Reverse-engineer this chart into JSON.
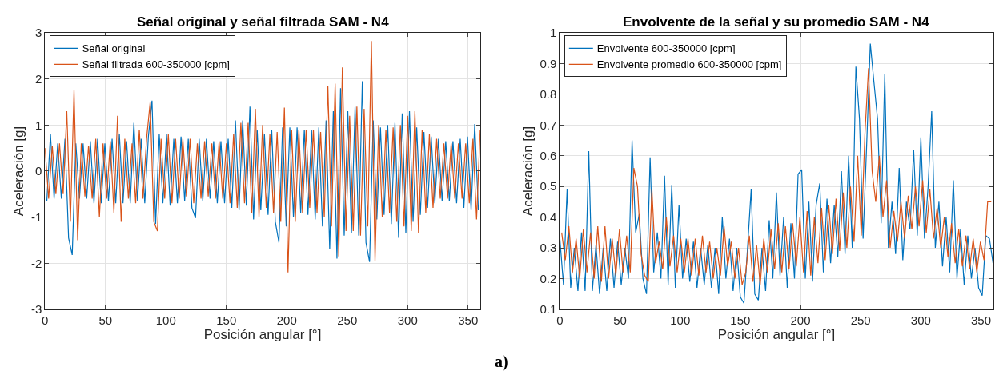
{
  "chart_data": [
    {
      "type": "line",
      "title": "Señal original y señal filtrada SAM - N4",
      "xlabel": "Posición angular [°]",
      "ylabel": "Aceleración [g]",
      "xlim": [
        0,
        360
      ],
      "ylim": [
        -3,
        3
      ],
      "xticks": [
        0,
        50,
        100,
        150,
        200,
        250,
        300,
        350
      ],
      "yticks": [
        -3,
        -2,
        -1,
        0,
        1,
        2,
        3
      ],
      "grid": true,
      "legend": "top left",
      "annotations": [
        "a)"
      ],
      "series": [
        {
          "name": "Señal original",
          "color": "#0072bd",
          "x": [
            1.5,
            4.5,
            7.5,
            10.5,
            13.5,
            16.5,
            19.5,
            22.5,
            25.5,
            28.5,
            31.5,
            34.5,
            37.5,
            40.5,
            43.5,
            46.5,
            49.5,
            52.5,
            55.5,
            58.5,
            61.5,
            64.5,
            67.5,
            70.5,
            73.5,
            76.5,
            79.5,
            82.5,
            85.5,
            88.5,
            91.5,
            94.5,
            97.5,
            100.5,
            103.5,
            106.5,
            109.5,
            112.5,
            115.5,
            118.5,
            121.5,
            124.5,
            127.5,
            130.5,
            133.5,
            136.5,
            139.5,
            142.5,
            145.5,
            148.5,
            151.5,
            154.5,
            157.5,
            160.5,
            163.5,
            166.5,
            169.5,
            172.5,
            175.5,
            178.5,
            181.5,
            184.5,
            187.5,
            190.5,
            193.5,
            196.5,
            199.5,
            202.5,
            205.5,
            208.5,
            211.5,
            214.5,
            217.5,
            220.5,
            223.5,
            226.5,
            229.5,
            232.5,
            235.5,
            238.5,
            241.5,
            244.5,
            247.5,
            250.5,
            253.5,
            256.5,
            259.5,
            262.5,
            265.5,
            268.5,
            271.5,
            274.5,
            277.5,
            280.5,
            283.5,
            286.5,
            289.5,
            292.5,
            295.5,
            298.5,
            301.5,
            304.5,
            307.5,
            310.5,
            313.5,
            316.5,
            319.5,
            322.5,
            325.5,
            328.5,
            331.5,
            334.5,
            337.5,
            340.5,
            343.5,
            346.5,
            349.5,
            352.5,
            355.5,
            358.5
          ],
          "values": [
            -0.65,
            0.8,
            -0.6,
            0.6,
            -0.6,
            0.7,
            -1.45,
            -1.82,
            0.6,
            -0.6,
            0.6,
            -0.6,
            0.65,
            -0.7,
            0.7,
            -0.7,
            0.6,
            -0.65,
            0.7,
            -0.7,
            0.8,
            -0.7,
            0.65,
            -0.7,
            1.05,
            -0.65,
            0.7,
            -0.7,
            0.75,
            1.53,
            -1.15,
            0.8,
            -0.7,
            0.8,
            -0.75,
            0.7,
            -0.7,
            0.75,
            -0.65,
            0.7,
            -0.8,
            -1.02,
            0.7,
            -0.65,
            0.7,
            -0.6,
            0.65,
            -0.7,
            0.65,
            -0.7,
            0.7,
            -0.8,
            1.1,
            -0.85,
            1.1,
            -0.75,
            1.4,
            -1.05,
            0.9,
            -0.85,
            0.8,
            -0.95,
            0.9,
            -1.1,
            -1.55,
            0.95,
            -1.2,
            0.95,
            -1.0,
            0.95,
            -0.9,
            0.9,
            -0.95,
            0.9,
            -1.05,
            0.95,
            -1.2,
            1.1,
            -1.7,
            1.3,
            -1.9,
            1.8,
            -1.4,
            1.3,
            -1.35,
            1.4,
            -1.4,
            1.95,
            -1.55,
            -1.97,
            1.1,
            -1.05,
            0.95,
            -0.95,
            1.0,
            -1.15,
            1.05,
            -1.45,
            1.25,
            -1.35,
            1.3,
            -1.1,
            0.95,
            -0.95,
            0.85,
            -0.8,
            0.75,
            -0.7,
            0.7,
            -0.65,
            0.65,
            -0.65,
            0.65,
            -0.7,
            0.7,
            -0.8,
            0.75,
            -0.85,
            1.02,
            -0.85
          ]
        },
        {
          "name": "Señal filtrada 600-350000 [cpm]",
          "color": "#d95319",
          "x": [
            0,
            3,
            6,
            9,
            12,
            15,
            18,
            21,
            24,
            27,
            30,
            33,
            36,
            39,
            42,
            45,
            48,
            51,
            54,
            57,
            60,
            63,
            66,
            69,
            72,
            75,
            78,
            81,
            84,
            87,
            90,
            93,
            96,
            99,
            102,
            105,
            108,
            111,
            114,
            117,
            120,
            123,
            126,
            129,
            132,
            135,
            138,
            141,
            144,
            147,
            150,
            153,
            156,
            159,
            162,
            165,
            168,
            171,
            174,
            177,
            180,
            183,
            186,
            189,
            192,
            195,
            198,
            201,
            204,
            207,
            210,
            213,
            216,
            219,
            222,
            225,
            228,
            231,
            234,
            237,
            240,
            243,
            246,
            249,
            252,
            255,
            258,
            261,
            264,
            267,
            270,
            273,
            276,
            279,
            282,
            285,
            288,
            291,
            294,
            297,
            300,
            303,
            306,
            309,
            312,
            315,
            318,
            321,
            324,
            327,
            330,
            333,
            336,
            339,
            342,
            345,
            348,
            351,
            354,
            357,
            360
          ],
          "values": [
            0.5,
            -0.6,
            0.55,
            -0.5,
            0.6,
            -0.5,
            1.3,
            -1.1,
            1.75,
            -1.5,
            0.6,
            -0.55,
            0.55,
            -0.6,
            0.7,
            -1.0,
            0.6,
            -0.6,
            0.65,
            -0.9,
            1.2,
            -1.1,
            0.7,
            -0.6,
            0.6,
            -0.7,
            0.9,
            -0.6,
            0.7,
            1.5,
            -1.1,
            -1.3,
            0.7,
            -0.6,
            0.8,
            -0.7,
            0.7,
            -0.6,
            0.7,
            -0.55,
            0.7,
            -0.7,
            0.6,
            -0.6,
            0.65,
            -0.55,
            0.6,
            -0.6,
            0.65,
            -0.6,
            0.6,
            -0.7,
            0.8,
            -0.8,
            1.05,
            -0.7,
            1.05,
            -0.9,
            1.35,
            -1.0,
            1.0,
            -0.8,
            0.8,
            -0.9,
            0.85,
            -1.1,
            1.38,
            -2.2,
            0.9,
            -1.1,
            0.9,
            -0.9,
            0.9,
            -0.8,
            0.9,
            -0.9,
            0.85,
            -1.0,
            1.85,
            -1.2,
            1.9,
            -1.85,
            2.25,
            -1.3,
            1.2,
            -1.3,
            1.4,
            -1.4,
            1.35,
            -1.2,
            2.82,
            -1.95,
            1.0,
            -1.0,
            0.9,
            -0.9,
            0.95,
            -1.1,
            1.0,
            -1.2,
            1.2,
            -1.3,
            1.3,
            -1.35,
            0.9,
            -0.9,
            0.8,
            -0.8,
            0.7,
            -0.6,
            0.6,
            -0.6,
            0.6,
            -0.6,
            0.6,
            -0.6,
            0.6,
            -0.7,
            0.7,
            -1.05,
            0.9
          ]
        }
      ]
    },
    {
      "type": "line",
      "title": "Envolvente de la señal y su promedio SAM - N4",
      "xlabel": "Posición angular [°]",
      "ylabel": "Aceleración [g]",
      "xlim": [
        0,
        360
      ],
      "ylim": [
        0.1,
        1
      ],
      "xticks": [
        0,
        50,
        100,
        150,
        200,
        250,
        300,
        350
      ],
      "yticks": [
        0.1,
        0.2,
        0.3,
        0.4,
        0.5,
        0.6,
        0.7,
        0.8,
        0.9,
        1
      ],
      "grid": true,
      "legend": "top left",
      "series": [
        {
          "name": "Envolvente 600-350000 [cpm]",
          "color": "#0072bd",
          "x": [
            0,
            3,
            6,
            9,
            12,
            15,
            18,
            21,
            24,
            27,
            30,
            33,
            36,
            39,
            42,
            45,
            48,
            51,
            54,
            57,
            60,
            63,
            66,
            69,
            72,
            75,
            78,
            81,
            84,
            87,
            90,
            93,
            96,
            99,
            102,
            105,
            108,
            111,
            114,
            117,
            120,
            123,
            126,
            129,
            132,
            135,
            138,
            141,
            144,
            147,
            150,
            153,
            156,
            159,
            162,
            165,
            168,
            171,
            174,
            177,
            180,
            183,
            186,
            189,
            192,
            195,
            198,
            201,
            204,
            207,
            210,
            213,
            216,
            219,
            222,
            225,
            228,
            231,
            234,
            237,
            240,
            243,
            246,
            249,
            252,
            255,
            258,
            261,
            264,
            267,
            270,
            273,
            276,
            279,
            282,
            285,
            288,
            291,
            294,
            297,
            300,
            303,
            306,
            309,
            312,
            315,
            318,
            321,
            324,
            327,
            330,
            333,
            336,
            339,
            342,
            345,
            348,
            351,
            354,
            357,
            360
          ],
          "values": [
            0.33,
            0.18,
            0.49,
            0.17,
            0.3,
            0.16,
            0.35,
            0.16,
            0.615,
            0.16,
            0.31,
            0.15,
            0.3,
            0.16,
            0.33,
            0.17,
            0.32,
            0.18,
            0.3,
            0.2,
            0.65,
            0.35,
            0.41,
            0.2,
            0.15,
            0.595,
            0.22,
            0.35,
            0.2,
            0.535,
            0.18,
            0.505,
            0.17,
            0.44,
            0.2,
            0.33,
            0.19,
            0.32,
            0.17,
            0.3,
            0.18,
            0.31,
            0.17,
            0.3,
            0.15,
            0.4,
            0.2,
            0.33,
            0.16,
            0.3,
            0.14,
            0.12,
            0.3,
            0.49,
            0.15,
            0.13,
            0.3,
            0.16,
            0.39,
            0.2,
            0.48,
            0.21,
            0.4,
            0.17,
            0.38,
            0.2,
            0.54,
            0.555,
            0.2,
            0.45,
            0.19,
            0.44,
            0.51,
            0.22,
            0.46,
            0.25,
            0.44,
            0.27,
            0.55,
            0.28,
            0.6,
            0.3,
            0.89,
            0.72,
            0.33,
            0.64,
            0.965,
            0.84,
            0.72,
            0.38,
            0.865,
            0.3,
            0.45,
            0.28,
            0.56,
            0.26,
            0.45,
            0.36,
            0.62,
            0.34,
            0.66,
            0.33,
            0.5,
            0.745,
            0.3,
            0.45,
            0.24,
            0.4,
            0.22,
            0.52,
            0.2,
            0.36,
            0.18,
            0.34,
            0.2,
            0.3,
            0.17,
            0.145,
            0.34,
            0.33,
            0.25
          ]
        },
        {
          "name": "Envolvente promedio 600-350000 [cpm]",
          "color": "#d95319",
          "x": [
            1.5,
            4.5,
            7.5,
            10.5,
            13.5,
            16.5,
            19.5,
            22.5,
            25.5,
            28.5,
            31.5,
            34.5,
            37.5,
            40.5,
            43.5,
            46.5,
            49.5,
            52.5,
            55.5,
            58.5,
            61.5,
            64.5,
            67.5,
            70.5,
            73.5,
            76.5,
            79.5,
            82.5,
            85.5,
            88.5,
            91.5,
            94.5,
            97.5,
            100.5,
            103.5,
            106.5,
            109.5,
            112.5,
            115.5,
            118.5,
            121.5,
            124.5,
            127.5,
            130.5,
            133.5,
            136.5,
            139.5,
            142.5,
            145.5,
            148.5,
            151.5,
            154.5,
            157.5,
            160.5,
            163.5,
            166.5,
            169.5,
            172.5,
            175.5,
            178.5,
            181.5,
            184.5,
            187.5,
            190.5,
            193.5,
            196.5,
            199.5,
            202.5,
            205.5,
            208.5,
            211.5,
            214.5,
            217.5,
            220.5,
            223.5,
            226.5,
            229.5,
            232.5,
            235.5,
            238.5,
            241.5,
            244.5,
            247.5,
            250.5,
            253.5,
            256.5,
            259.5,
            262.5,
            265.5,
            268.5,
            271.5,
            274.5,
            277.5,
            280.5,
            283.5,
            286.5,
            289.5,
            292.5,
            295.5,
            298.5,
            301.5,
            304.5,
            307.5,
            310.5,
            313.5,
            316.5,
            319.5,
            322.5,
            325.5,
            328.5,
            331.5,
            334.5,
            337.5,
            340.5,
            343.5,
            346.5,
            349.5,
            352.5,
            355.5,
            358.5
          ],
          "values": [
            0.35,
            0.26,
            0.37,
            0.22,
            0.33,
            0.2,
            0.36,
            0.22,
            0.35,
            0.2,
            0.37,
            0.19,
            0.37,
            0.2,
            0.33,
            0.21,
            0.36,
            0.22,
            0.34,
            0.22,
            0.56,
            0.5,
            0.28,
            0.21,
            0.19,
            0.49,
            0.25,
            0.32,
            0.23,
            0.4,
            0.24,
            0.34,
            0.22,
            0.33,
            0.22,
            0.33,
            0.21,
            0.33,
            0.21,
            0.34,
            0.22,
            0.32,
            0.2,
            0.3,
            0.21,
            0.37,
            0.24,
            0.32,
            0.2,
            0.3,
            0.18,
            0.22,
            0.34,
            0.19,
            0.31,
            0.18,
            0.33,
            0.22,
            0.36,
            0.23,
            0.38,
            0.22,
            0.37,
            0.23,
            0.38,
            0.24,
            0.4,
            0.22,
            0.42,
            0.21,
            0.4,
            0.25,
            0.43,
            0.26,
            0.44,
            0.28,
            0.46,
            0.29,
            0.48,
            0.3,
            0.5,
            0.32,
            0.6,
            0.34,
            0.67,
            0.885,
            0.55,
            0.45,
            0.6,
            0.4,
            0.52,
            0.3,
            0.42,
            0.32,
            0.45,
            0.33,
            0.47,
            0.36,
            0.5,
            0.37,
            0.52,
            0.35,
            0.49,
            0.33,
            0.43,
            0.3,
            0.4,
            0.27,
            0.38,
            0.25,
            0.36,
            0.24,
            0.34,
            0.23,
            0.33,
            0.22,
            0.32,
            0.26,
            0.45,
            0.45
          ]
        }
      ]
    }
  ]
}
